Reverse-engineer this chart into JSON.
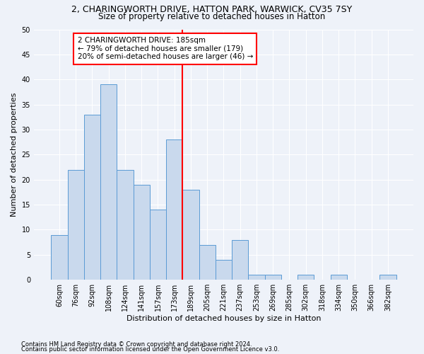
{
  "title1": "2, CHARINGWORTH DRIVE, HATTON PARK, WARWICK, CV35 7SY",
  "title2": "Size of property relative to detached houses in Hatton",
  "xlabel": "Distribution of detached houses by size in Hatton",
  "ylabel": "Number of detached properties",
  "footer1": "Contains HM Land Registry data © Crown copyright and database right 2024.",
  "footer2": "Contains public sector information licensed under the Open Government Licence v3.0.",
  "bin_labels": [
    "60sqm",
    "76sqm",
    "92sqm",
    "108sqm",
    "124sqm",
    "141sqm",
    "157sqm",
    "173sqm",
    "189sqm",
    "205sqm",
    "221sqm",
    "237sqm",
    "253sqm",
    "269sqm",
    "285sqm",
    "302sqm",
    "318sqm",
    "334sqm",
    "350sqm",
    "366sqm",
    "382sqm"
  ],
  "bar_values": [
    9,
    22,
    33,
    39,
    22,
    19,
    14,
    28,
    18,
    7,
    4,
    8,
    1,
    1,
    0,
    1,
    0,
    1,
    0,
    0,
    1
  ],
  "bar_color": "#c9d9ed",
  "bar_edge_color": "#5b9bd5",
  "vline_color": "red",
  "annotation_text": "2 CHARINGWORTH DRIVE: 185sqm\n← 79% of detached houses are smaller (179)\n20% of semi-detached houses are larger (46) →",
  "annotation_box_color": "white",
  "annotation_box_edge": "red",
  "ylim": [
    0,
    50
  ],
  "yticks": [
    0,
    5,
    10,
    15,
    20,
    25,
    30,
    35,
    40,
    45,
    50
  ],
  "background_color": "#eef2f9",
  "grid_color": "white",
  "title1_fontsize": 9,
  "title2_fontsize": 8.5,
  "xlabel_fontsize": 8,
  "ylabel_fontsize": 8,
  "tick_fontsize": 7,
  "annotation_fontsize": 7.5,
  "footer_fontsize": 6
}
